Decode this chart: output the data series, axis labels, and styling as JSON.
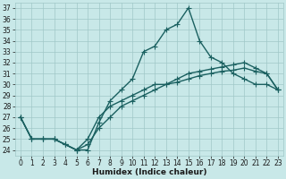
{
  "xlabel": "Humidex (Indice chaleur)",
  "background_color": "#c8e8e8",
  "grid_color": "#a0c8c8",
  "line_color": "#1a6060",
  "xlim": [
    -0.5,
    23.5
  ],
  "ylim": [
    23.5,
    37.5
  ],
  "yticks": [
    24,
    25,
    26,
    27,
    28,
    29,
    30,
    31,
    32,
    33,
    34,
    35,
    36,
    37
  ],
  "xticks": [
    0,
    1,
    2,
    3,
    4,
    5,
    6,
    7,
    8,
    9,
    10,
    11,
    12,
    13,
    14,
    15,
    16,
    17,
    18,
    19,
    20,
    21,
    22,
    23
  ],
  "line1_x": [
    0,
    1,
    2,
    3,
    4,
    5,
    6,
    7,
    8,
    9,
    10,
    11,
    12,
    13,
    14,
    15,
    16,
    17,
    18,
    19,
    20,
    21,
    22,
    23
  ],
  "line1_y": [
    27.0,
    25.0,
    25.0,
    25.0,
    24.5,
    24.0,
    24.0,
    26.5,
    28.5,
    29.5,
    30.5,
    33.0,
    33.5,
    35.0,
    35.5,
    37.0,
    34.0,
    32.5,
    32.0,
    31.0,
    30.5,
    30.0,
    30.0,
    29.5
  ],
  "line2_x": [
    0,
    1,
    2,
    3,
    4,
    5,
    6,
    7,
    8,
    9,
    10,
    11,
    12,
    13,
    14,
    15,
    16,
    17,
    18,
    19,
    20,
    21,
    22,
    23
  ],
  "line2_y": [
    27.0,
    25.0,
    25.0,
    25.0,
    24.5,
    24.0,
    25.0,
    27.0,
    28.0,
    28.5,
    29.0,
    29.5,
    30.0,
    30.0,
    30.2,
    30.5,
    30.8,
    31.0,
    31.2,
    31.3,
    31.5,
    31.2,
    31.0,
    29.5
  ],
  "line3_x": [
    0,
    1,
    2,
    3,
    4,
    5,
    6,
    7,
    8,
    9,
    10,
    11,
    12,
    13,
    14,
    15,
    16,
    17,
    18,
    19,
    20,
    21,
    22,
    23
  ],
  "line3_y": [
    27.0,
    25.0,
    25.0,
    25.0,
    24.5,
    24.0,
    24.5,
    26.0,
    27.0,
    28.0,
    28.5,
    29.0,
    29.5,
    30.0,
    30.5,
    31.0,
    31.2,
    31.4,
    31.6,
    31.8,
    32.0,
    31.5,
    31.0,
    29.5
  ],
  "marker_size": 2.5,
  "line_width": 1.0,
  "tick_fontsize": 5.5,
  "xlabel_fontsize": 6.5
}
